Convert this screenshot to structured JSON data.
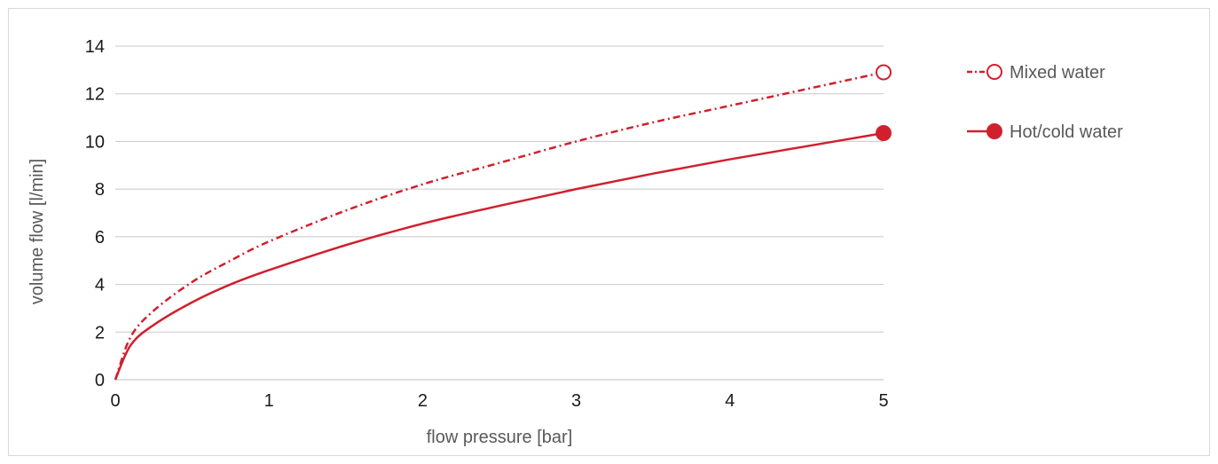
{
  "chart_data": {
    "type": "line",
    "xlabel": "flow pressure [bar]",
    "ylabel": "volume flow [l/min]",
    "xlim": [
      0,
      5
    ],
    "ylim": [
      0,
      14
    ],
    "x_ticks": [
      0,
      1,
      2,
      3,
      4,
      5
    ],
    "y_ticks": [
      0,
      2,
      4,
      6,
      8,
      10,
      12,
      14
    ],
    "grid": "horizontal",
    "legend": "right",
    "series": [
      {
        "name": "Mixed water",
        "line": "dash-dot",
        "marker": "hollow-circle",
        "color": "#d0202e",
        "x": [
          0,
          0.1,
          0.25,
          0.5,
          0.75,
          1,
          1.5,
          2,
          2.5,
          3,
          3.5,
          4,
          4.5,
          5
        ],
        "values": [
          0,
          1.8,
          2.9,
          4.1,
          5.0,
          5.8,
          7.1,
          8.2,
          9.1,
          10.0,
          10.8,
          11.5,
          12.2,
          12.9
        ]
      },
      {
        "name": "Hot/cold water",
        "line": "solid",
        "marker": "filled-circle",
        "color": "#d0202e",
        "x": [
          0,
          0.1,
          0.25,
          0.5,
          0.75,
          1,
          1.5,
          2,
          2.5,
          3,
          3.5,
          4,
          4.5,
          5
        ],
        "values": [
          0,
          1.45,
          2.3,
          3.25,
          4.0,
          4.6,
          5.65,
          6.55,
          7.3,
          8.0,
          8.65,
          9.25,
          9.8,
          10.35
        ]
      }
    ]
  }
}
